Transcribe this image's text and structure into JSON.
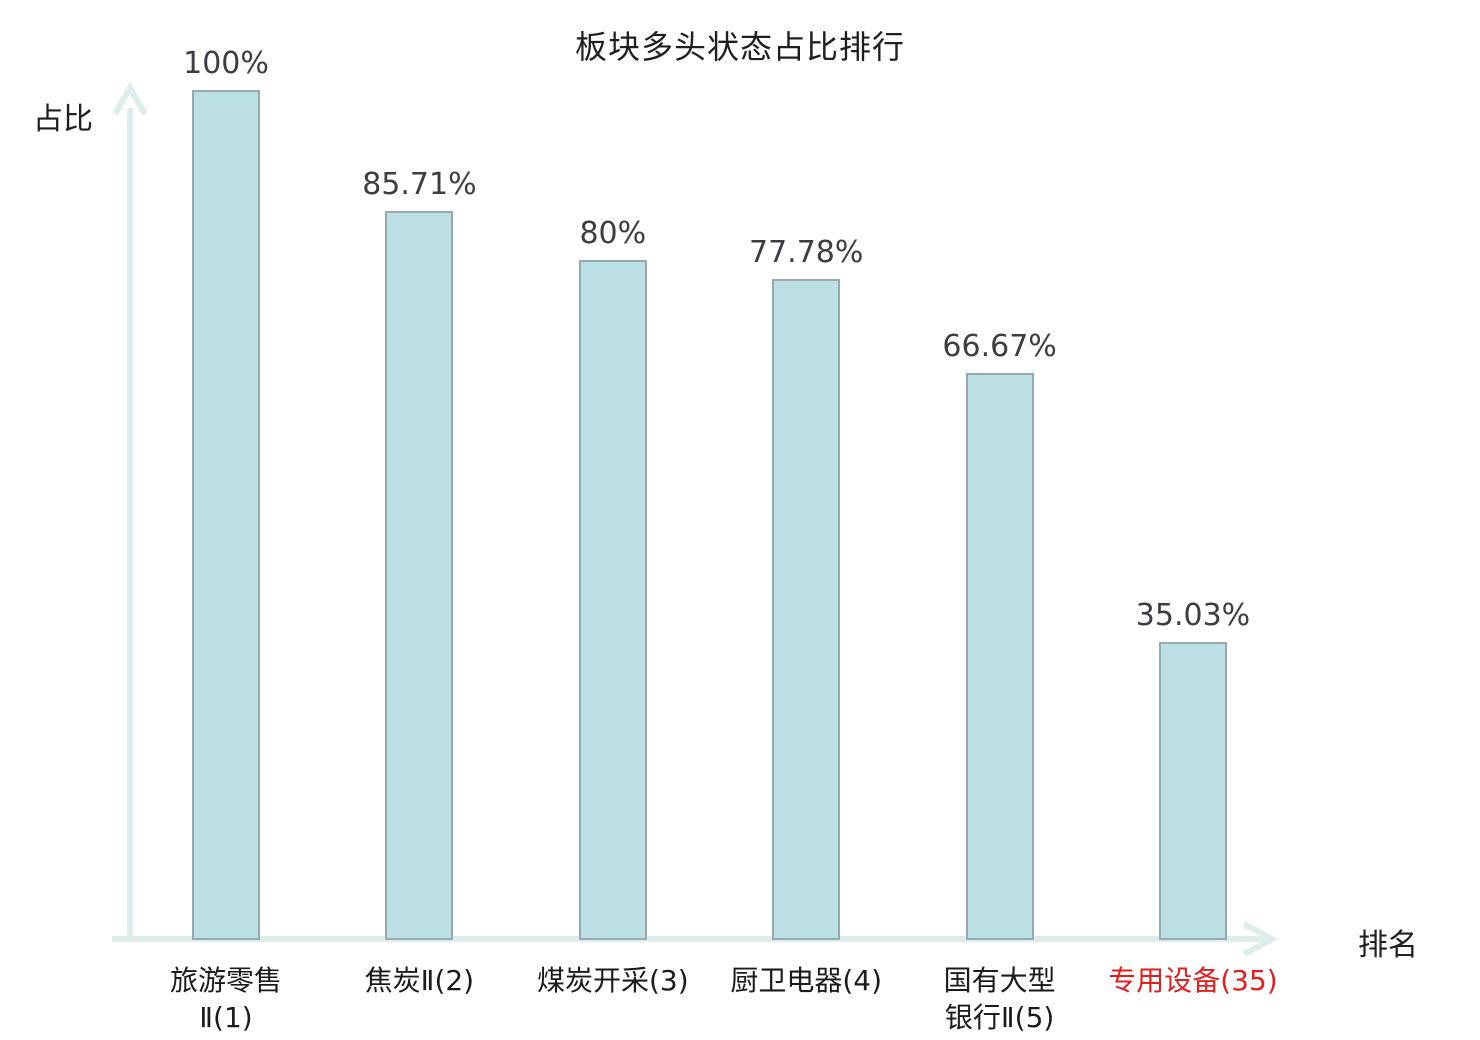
{
  "chart_data": {
    "type": "bar",
    "title": "板块多头状态占比排行",
    "ylabel": "占比",
    "xlabel": "排名",
    "ylim": [
      0,
      100
    ],
    "grid": false,
    "legend": "none",
    "categories": [
      "旅游零售Ⅱ(1)",
      "焦炭Ⅱ(2)",
      "煤炭开采(3)",
      "厨卫电器(4)",
      "国有大型银行Ⅱ(5)",
      "专用设备(35)"
    ],
    "category_lines": [
      [
        "旅游零售",
        "Ⅱ(1)"
      ],
      [
        "焦炭Ⅱ(2)"
      ],
      [
        "煤炭开采(3)"
      ],
      [
        "厨卫电器(4)"
      ],
      [
        "国有大型",
        "银行Ⅱ(5)"
      ],
      [
        "专用设备(35)"
      ]
    ],
    "values": [
      100,
      85.71,
      80,
      77.78,
      66.67,
      35.03
    ],
    "value_labels": [
      "100%",
      "85.71%",
      "80%",
      "77.78%",
      "66.67%",
      "35.03%"
    ],
    "highlighted_category_index": 5,
    "colors": {
      "bar_fill": "#bcdfe3",
      "bar_border": "#96a9b1",
      "axis": "#dcedec",
      "value_text": "#3a3e42",
      "category_text": "#1b1b1b",
      "highlight_text": "#e01f1f",
      "title_text": "#1f1f1f"
    }
  }
}
